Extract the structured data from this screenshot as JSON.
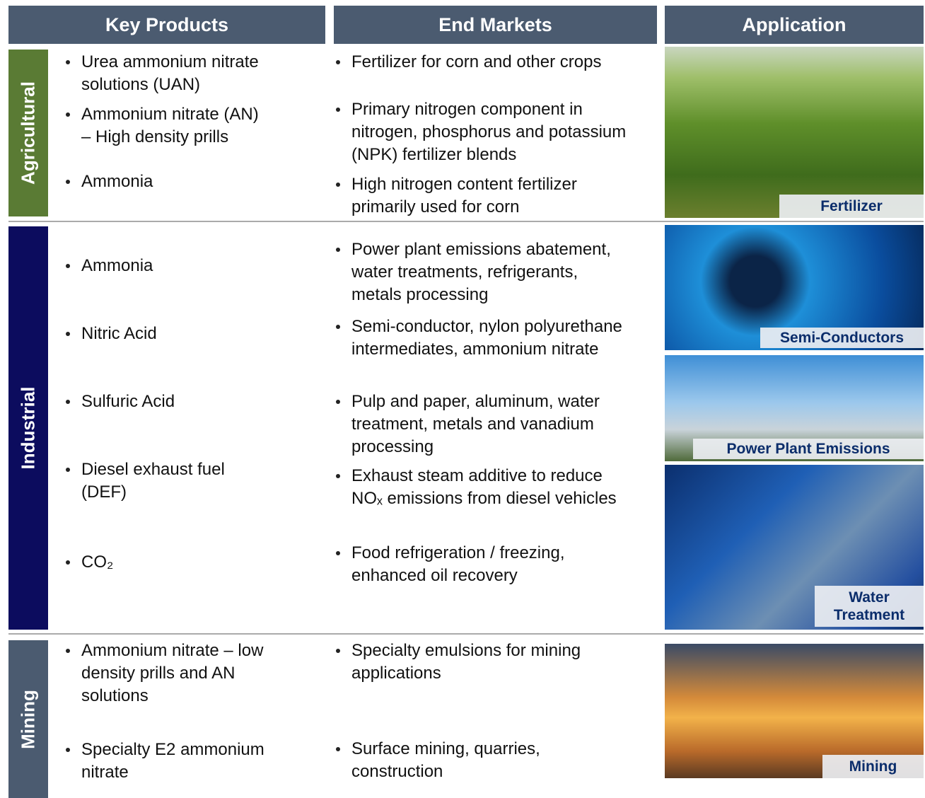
{
  "header": {
    "columns": [
      "Key Products",
      "End Markets",
      "Application"
    ]
  },
  "sections": [
    {
      "label": "Agricultural",
      "products": [
        "Urea ammonium nitrate\nsolutions (UAN)",
        "Ammonium nitrate (AN)\n– High density prills",
        "Ammonia"
      ],
      "markets": [
        "Fertilizer for corn and other crops",
        "Primary nitrogen component in\nnitrogen, phosphorus and potassium\n(NPK) fertilizer blends",
        "High nitrogen content fertilizer\nprimarily used for corn"
      ],
      "images": [
        {
          "caption": "Fertilizer"
        }
      ]
    },
    {
      "label": "Industrial",
      "products": [
        "Ammonia",
        "Nitric Acid",
        "Sulfuric Acid",
        "Diesel exhaust fuel\n(DEF)",
        "CO₂"
      ],
      "markets": [
        "Power plant emissions abatement,\nwater treatments, refrigerants,\nmetals processing",
        "Semi-conductor, nylon polyurethane\nintermediates, ammonium nitrate",
        "Pulp and paper, aluminum, water\ntreatment, metals and vanadium\nprocessing",
        "Exhaust steam additive to reduce\nNOₓ emissions from diesel vehicles",
        "Food refrigeration / freezing,\nenhanced oil recovery"
      ],
      "images": [
        {
          "caption": "Semi-Conductors"
        },
        {
          "caption": "Power Plant Emissions"
        },
        {
          "caption": "Water\nTreatment"
        }
      ]
    },
    {
      "label": "Mining",
      "products": [
        "Ammonium nitrate – low\ndensity prills and AN\nsolutions",
        "Specialty E2 ammonium\nnitrate"
      ],
      "markets": [
        "Specialty emulsions for mining\napplications",
        "Surface mining, quarries,\nconstruction"
      ],
      "images": [
        {
          "caption": "Mining"
        }
      ]
    }
  ]
}
